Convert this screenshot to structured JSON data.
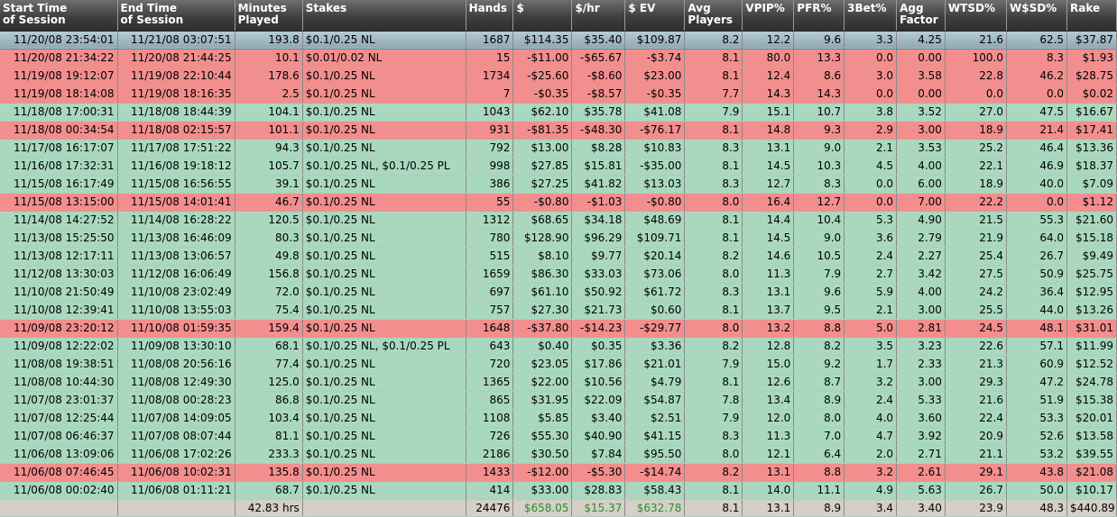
{
  "columns": [
    {
      "key": "start",
      "label": "Start Time\nof Session",
      "align": "num"
    },
    {
      "key": "end",
      "label": "End Time\nof Session",
      "align": "num"
    },
    {
      "key": "minutes",
      "label": "Minutes\nPlayed",
      "align": "num"
    },
    {
      "key": "stakes",
      "label": "Stakes",
      "align": "txt"
    },
    {
      "key": "hands",
      "label": "Hands",
      "align": "num"
    },
    {
      "key": "won",
      "label": "$",
      "align": "num"
    },
    {
      "key": "per_hr",
      "label": "$/hr",
      "align": "num"
    },
    {
      "key": "ev",
      "label": "$ EV",
      "align": "num"
    },
    {
      "key": "avg_players",
      "label": "Avg\nPlayers",
      "align": "num"
    },
    {
      "key": "vpip",
      "label": "VPIP%",
      "align": "num"
    },
    {
      "key": "pfr",
      "label": "PFR%",
      "align": "num"
    },
    {
      "key": "threebet",
      "label": "3Bet%",
      "align": "num"
    },
    {
      "key": "agg",
      "label": "Agg\nFactor",
      "align": "num"
    },
    {
      "key": "wtsd",
      "label": "WTSD%",
      "align": "num"
    },
    {
      "key": "wsd",
      "label": "W$SD%",
      "align": "num"
    },
    {
      "key": "rake",
      "label": "Rake",
      "align": "num"
    }
  ],
  "rows": [
    {
      "state": "selected",
      "cells": [
        "11/20/08 23:54:01",
        "11/21/08 03:07:51",
        "193.8",
        "$0.1/0.25 NL",
        "1687",
        "$114.35",
        "$35.40",
        "$109.87",
        "8.2",
        "12.2",
        "9.6",
        "3.3",
        "4.25",
        "21.6",
        "62.5",
        "$37.87"
      ]
    },
    {
      "state": "loss",
      "cells": [
        "11/20/08 21:34:22",
        "11/20/08 21:44:25",
        "10.1",
        "$0.01/0.02 NL",
        "15",
        "-$11.00",
        "-$65.67",
        "-$3.74",
        "8.1",
        "80.0",
        "13.3",
        "0.0",
        "0.00",
        "100.0",
        "8.3",
        "$1.93"
      ]
    },
    {
      "state": "loss",
      "cells": [
        "11/19/08 19:12:07",
        "11/19/08 22:10:44",
        "178.6",
        "$0.1/0.25 NL",
        "1734",
        "-$25.60",
        "-$8.60",
        "$23.00",
        "8.1",
        "12.4",
        "8.6",
        "3.0",
        "3.58",
        "22.8",
        "46.2",
        "$28.75"
      ]
    },
    {
      "state": "loss",
      "cells": [
        "11/19/08 18:14:08",
        "11/19/08 18:16:35",
        "2.5",
        "$0.1/0.25 NL",
        "7",
        "-$0.35",
        "-$8.57",
        "-$0.35",
        "7.7",
        "14.3",
        "14.3",
        "0.0",
        "0.00",
        "0.0",
        "0.0",
        "$0.02"
      ]
    },
    {
      "state": "win",
      "cells": [
        "11/18/08 17:00:31",
        "11/18/08 18:44:39",
        "104.1",
        "$0.1/0.25 NL",
        "1043",
        "$62.10",
        "$35.78",
        "$41.08",
        "7.9",
        "15.1",
        "10.7",
        "3.8",
        "3.52",
        "27.0",
        "47.5",
        "$16.67"
      ]
    },
    {
      "state": "loss",
      "cells": [
        "11/18/08 00:34:54",
        "11/18/08 02:15:57",
        "101.1",
        "$0.1/0.25 NL",
        "931",
        "-$81.35",
        "-$48.30",
        "-$76.17",
        "8.1",
        "14.8",
        "9.3",
        "2.9",
        "3.00",
        "18.9",
        "21.4",
        "$17.41"
      ]
    },
    {
      "state": "win",
      "cells": [
        "11/17/08 16:17:07",
        "11/17/08 17:51:22",
        "94.3",
        "$0.1/0.25 NL",
        "792",
        "$13.00",
        "$8.28",
        "$10.83",
        "8.3",
        "13.1",
        "9.0",
        "2.1",
        "3.53",
        "25.2",
        "46.4",
        "$13.36"
      ]
    },
    {
      "state": "win",
      "cells": [
        "11/16/08 17:32:31",
        "11/16/08 19:18:12",
        "105.7",
        "$0.1/0.25 NL, $0.1/0.25 PL",
        "998",
        "$27.85",
        "$15.81",
        "-$35.00",
        "8.1",
        "14.5",
        "10.3",
        "4.5",
        "4.00",
        "22.1",
        "46.9",
        "$18.37"
      ]
    },
    {
      "state": "win",
      "cells": [
        "11/15/08 16:17:49",
        "11/15/08 16:56:55",
        "39.1",
        "$0.1/0.25 NL",
        "386",
        "$27.25",
        "$41.82",
        "$13.03",
        "8.3",
        "12.7",
        "8.3",
        "0.0",
        "6.00",
        "18.9",
        "40.0",
        "$7.09"
      ]
    },
    {
      "state": "loss",
      "cells": [
        "11/15/08 13:15:00",
        "11/15/08 14:01:41",
        "46.7",
        "$0.1/0.25 NL",
        "55",
        "-$0.80",
        "-$1.03",
        "-$0.80",
        "8.0",
        "16.4",
        "12.7",
        "0.0",
        "7.00",
        "22.2",
        "0.0",
        "$1.12"
      ]
    },
    {
      "state": "win",
      "cells": [
        "11/14/08 14:27:52",
        "11/14/08 16:28:22",
        "120.5",
        "$0.1/0.25 NL",
        "1312",
        "$68.65",
        "$34.18",
        "$48.69",
        "8.1",
        "14.4",
        "10.4",
        "5.3",
        "4.90",
        "21.5",
        "55.3",
        "$21.60"
      ]
    },
    {
      "state": "win",
      "cells": [
        "11/13/08 15:25:50",
        "11/13/08 16:46:09",
        "80.3",
        "$0.1/0.25 NL",
        "780",
        "$128.90",
        "$96.29",
        "$109.71",
        "8.1",
        "14.5",
        "9.0",
        "3.6",
        "2.79",
        "21.9",
        "64.0",
        "$15.18"
      ]
    },
    {
      "state": "win",
      "cells": [
        "11/13/08 12:17:11",
        "11/13/08 13:06:57",
        "49.8",
        "$0.1/0.25 NL",
        "515",
        "$8.10",
        "$9.77",
        "$20.14",
        "8.2",
        "14.6",
        "10.5",
        "2.4",
        "2.27",
        "25.4",
        "26.7",
        "$9.49"
      ]
    },
    {
      "state": "win",
      "cells": [
        "11/12/08 13:30:03",
        "11/12/08 16:06:49",
        "156.8",
        "$0.1/0.25 NL",
        "1659",
        "$86.30",
        "$33.03",
        "$73.06",
        "8.0",
        "11.3",
        "7.9",
        "2.7",
        "3.42",
        "27.5",
        "50.9",
        "$25.75"
      ]
    },
    {
      "state": "win",
      "cells": [
        "11/10/08 21:50:49",
        "11/10/08 23:02:49",
        "72.0",
        "$0.1/0.25 NL",
        "697",
        "$61.10",
        "$50.92",
        "$61.72",
        "8.3",
        "13.1",
        "9.6",
        "5.9",
        "4.00",
        "24.2",
        "36.4",
        "$12.95"
      ]
    },
    {
      "state": "win",
      "cells": [
        "11/10/08 12:39:41",
        "11/10/08 13:55:03",
        "75.4",
        "$0.1/0.25 NL",
        "757",
        "$27.30",
        "$21.73",
        "$0.60",
        "8.1",
        "13.7",
        "9.5",
        "2.1",
        "3.00",
        "25.5",
        "44.0",
        "$13.26"
      ]
    },
    {
      "state": "loss",
      "cells": [
        "11/09/08 23:20:12",
        "11/10/08 01:59:35",
        "159.4",
        "$0.1/0.25 NL",
        "1648",
        "-$37.80",
        "-$14.23",
        "-$29.77",
        "8.0",
        "13.2",
        "8.8",
        "5.0",
        "2.81",
        "24.5",
        "48.1",
        "$31.01"
      ]
    },
    {
      "state": "win",
      "cells": [
        "11/09/08 12:22:02",
        "11/09/08 13:30:10",
        "68.1",
        "$0.1/0.25 NL, $0.1/0.25 PL",
        "643",
        "$0.40",
        "$0.35",
        "$3.36",
        "8.2",
        "12.8",
        "8.2",
        "3.5",
        "3.23",
        "22.6",
        "57.1",
        "$11.99"
      ]
    },
    {
      "state": "win",
      "cells": [
        "11/08/08 19:38:51",
        "11/08/08 20:56:16",
        "77.4",
        "$0.1/0.25 NL",
        "720",
        "$23.05",
        "$17.86",
        "$21.01",
        "7.9",
        "15.0",
        "9.2",
        "1.7",
        "2.33",
        "21.3",
        "60.9",
        "$12.52"
      ]
    },
    {
      "state": "win",
      "cells": [
        "11/08/08 10:44:30",
        "11/08/08 12:49:30",
        "125.0",
        "$0.1/0.25 NL",
        "1365",
        "$22.00",
        "$10.56",
        "$4.79",
        "8.1",
        "12.6",
        "8.7",
        "3.2",
        "3.00",
        "29.3",
        "47.2",
        "$24.78"
      ]
    },
    {
      "state": "win",
      "cells": [
        "11/07/08 23:01:37",
        "11/08/08 00:28:23",
        "86.8",
        "$0.1/0.25 NL",
        "865",
        "$31.95",
        "$22.09",
        "$54.87",
        "7.8",
        "13.4",
        "8.9",
        "2.4",
        "5.33",
        "21.6",
        "51.9",
        "$15.38"
      ]
    },
    {
      "state": "win",
      "cells": [
        "11/07/08 12:25:44",
        "11/07/08 14:09:05",
        "103.4",
        "$0.1/0.25 NL",
        "1108",
        "$5.85",
        "$3.40",
        "$2.51",
        "7.9",
        "12.0",
        "8.0",
        "4.0",
        "3.60",
        "22.4",
        "53.3",
        "$20.01"
      ]
    },
    {
      "state": "win",
      "cells": [
        "11/07/08 06:46:37",
        "11/07/08 08:07:44",
        "81.1",
        "$0.1/0.25 NL",
        "726",
        "$55.30",
        "$40.90",
        "$41.15",
        "8.3",
        "11.3",
        "7.0",
        "4.7",
        "3.92",
        "20.9",
        "52.6",
        "$13.58"
      ]
    },
    {
      "state": "win",
      "cells": [
        "11/06/08 13:09:06",
        "11/06/08 17:02:26",
        "233.3",
        "$0.1/0.25 NL",
        "2186",
        "$30.50",
        "$7.84",
        "$95.50",
        "8.0",
        "12.1",
        "6.4",
        "2.0",
        "2.71",
        "21.1",
        "53.2",
        "$39.55"
      ]
    },
    {
      "state": "loss",
      "cells": [
        "11/06/08 07:46:45",
        "11/06/08 10:02:31",
        "135.8",
        "$0.1/0.25 NL",
        "1433",
        "-$12.00",
        "-$5.30",
        "-$14.74",
        "8.2",
        "13.1",
        "8.8",
        "3.2",
        "2.61",
        "29.1",
        "43.8",
        "$21.08"
      ]
    },
    {
      "state": "win",
      "cells": [
        "11/06/08 00:02:40",
        "11/06/08 01:11:21",
        "68.7",
        "$0.1/0.25 NL",
        "414",
        "$33.00",
        "$28.83",
        "$58.43",
        "8.1",
        "14.0",
        "11.1",
        "4.9",
        "5.63",
        "26.7",
        "50.0",
        "$10.17"
      ]
    }
  ],
  "totals": [
    "",
    "",
    "42.83 hrs",
    "",
    "24476",
    "$658.05",
    "$15.37",
    "$632.78",
    "8.1",
    "13.1",
    "8.9",
    "3.4",
    "3.40",
    "23.9",
    "48.3",
    "$440.89"
  ],
  "totals_green": [
    5,
    6,
    7
  ],
  "colors": {
    "win_row": "#a9d8bf",
    "loss_row": "#f38e8e",
    "selected_row": "#9fb6c0",
    "header_bg": "#3f3f3f",
    "totals_green_text": "#2f8a2a"
  }
}
